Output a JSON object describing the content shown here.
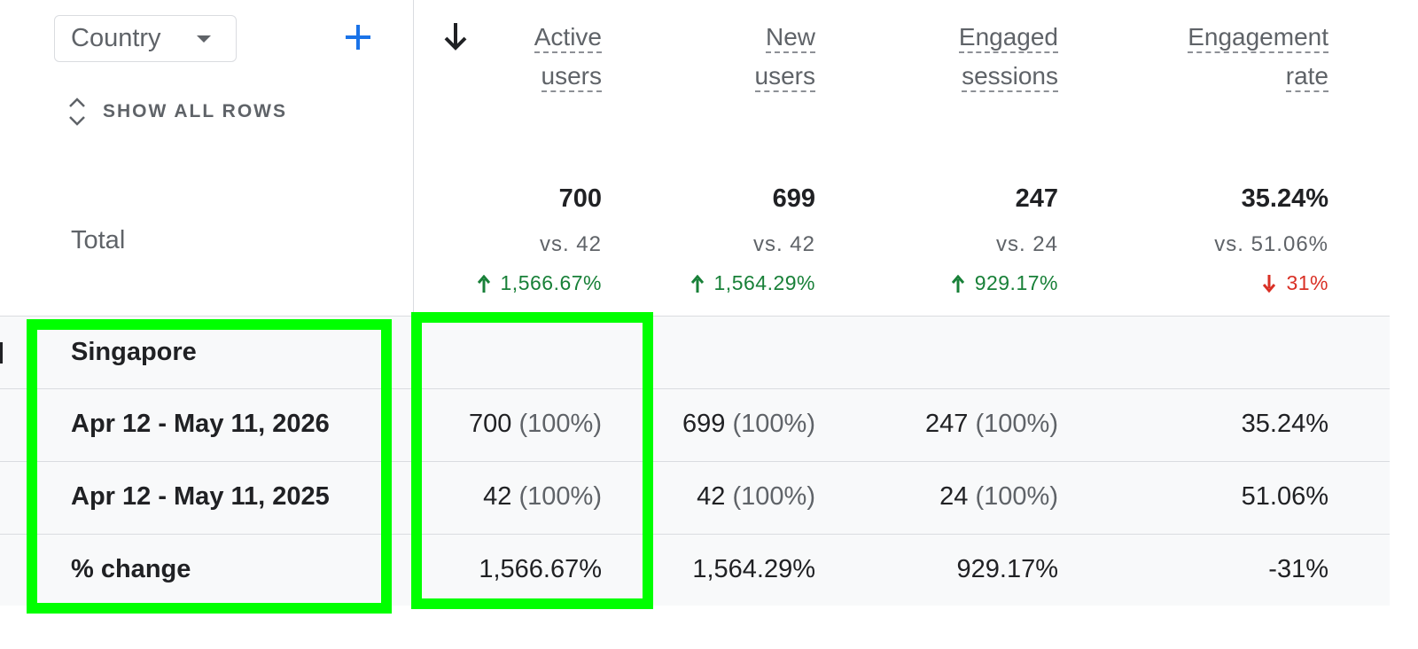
{
  "toolbar": {
    "dimension_label": "Country",
    "show_all_rows": "SHOW ALL ROWS"
  },
  "columns": [
    {
      "line1": "Active",
      "line2": "users"
    },
    {
      "line1": "New",
      "line2": "users"
    },
    {
      "line1": "Engaged",
      "line2": "sessions"
    },
    {
      "line1": "Engagement",
      "line2": "rate"
    }
  ],
  "totals": {
    "label": "Total",
    "values": [
      "700",
      "699",
      "247",
      "35.24%"
    ],
    "vs": [
      "vs. 42",
      "vs. 42",
      "vs. 24",
      "vs. 51.06%"
    ],
    "changes": [
      {
        "text": "1,566.67%",
        "direction": "up"
      },
      {
        "text": "1,564.29%",
        "direction": "up"
      },
      {
        "text": "929.17%",
        "direction": "up"
      },
      {
        "text": "31%",
        "direction": "down"
      }
    ]
  },
  "group": {
    "name": "Singapore",
    "rows": [
      {
        "label": "Apr 12 - May 11, 2026",
        "cells": [
          {
            "value": "700",
            "pct": "(100%)"
          },
          {
            "value": "699",
            "pct": "(100%)"
          },
          {
            "value": "247",
            "pct": "(100%)"
          },
          {
            "value": "35.24%",
            "pct": ""
          }
        ]
      },
      {
        "label": "Apr 12 - May 11, 2025",
        "cells": [
          {
            "value": "42",
            "pct": "(100%)"
          },
          {
            "value": "42",
            "pct": "(100%)"
          },
          {
            "value": "24",
            "pct": "(100%)"
          },
          {
            "value": "51.06%",
            "pct": ""
          }
        ]
      },
      {
        "label": "% change",
        "cells": [
          {
            "value": "1,566.67%",
            "pct": ""
          },
          {
            "value": "1,564.29%",
            "pct": ""
          },
          {
            "value": "929.17%",
            "pct": ""
          },
          {
            "value": "-31%",
            "pct": ""
          }
        ]
      }
    ]
  },
  "colors": {
    "up": "#188038",
    "down": "#d93025",
    "accent": "#1a73e8",
    "highlight": "#00ff00"
  },
  "icons": [
    "chevron-down-icon",
    "plus-icon",
    "expand-collapse-icon",
    "arrow-down-sort-icon",
    "arrow-up-icon",
    "arrow-down-icon"
  ]
}
